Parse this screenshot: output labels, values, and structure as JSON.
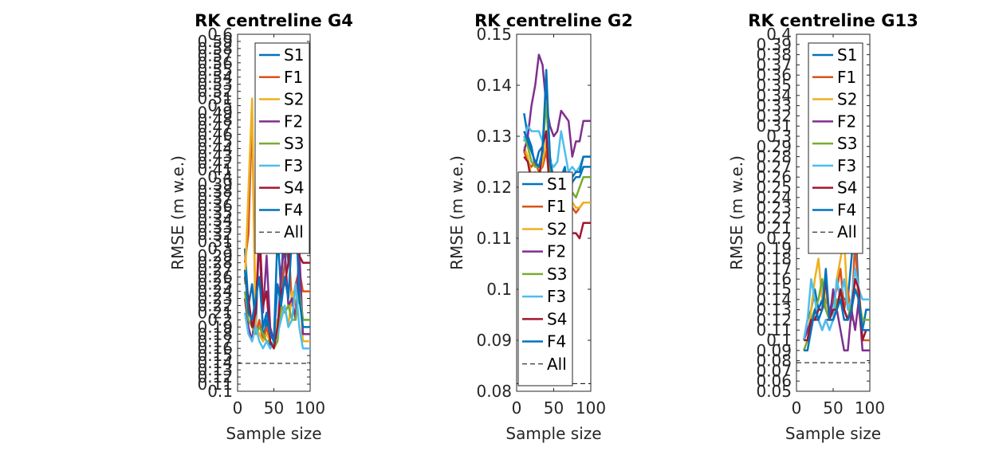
{
  "chart_data": [
    {
      "type": "line",
      "title": "RK centreline G4",
      "xlabel": "Sample size",
      "ylabel": "RMSE (m w.e.)",
      "xlim": [
        0,
        100
      ],
      "ylim": [
        0.1,
        0.6
      ],
      "xticks": [
        0,
        50,
        100
      ],
      "yticks": [
        0.1,
        0.11,
        0.12,
        0.13,
        0.14,
        0.15,
        0.16,
        0.17,
        0.18,
        0.19,
        0.2,
        0.21,
        0.22,
        0.23,
        0.24,
        0.25,
        0.26,
        0.27,
        0.28,
        0.29,
        0.3,
        0.31,
        0.32,
        0.33,
        0.34,
        0.35,
        0.36,
        0.37,
        0.38,
        0.39,
        0.4,
        0.41,
        0.42,
        0.43,
        0.44,
        0.45,
        0.46,
        0.47,
        0.48,
        0.49,
        0.5,
        0.51,
        0.52,
        0.53,
        0.54,
        0.55,
        0.56,
        0.57,
        0.58,
        0.59,
        0.6
      ],
      "legend_position": "top-right",
      "x": [
        10,
        15,
        20,
        25,
        30,
        35,
        40,
        45,
        50,
        55,
        60,
        65,
        70,
        75,
        80,
        85,
        90,
        95,
        100
      ],
      "series": [
        {
          "name": "S1",
          "color": "#0072BD",
          "values": [
            0.3,
            0.22,
            0.25,
            0.19,
            0.33,
            0.17,
            0.2,
            0.16,
            0.17,
            0.32,
            0.24,
            0.37,
            0.28,
            0.34,
            0.42,
            0.25,
            0.2,
            0.2,
            0.2
          ]
        },
        {
          "name": "F1",
          "color": "#D95319",
          "values": [
            0.28,
            0.32,
            0.49,
            0.18,
            0.2,
            0.17,
            0.19,
            0.17,
            0.16,
            0.19,
            0.23,
            0.28,
            0.31,
            0.22,
            0.25,
            0.27,
            0.24,
            0.24,
            0.24
          ]
        },
        {
          "name": "S2",
          "color": "#EDB120",
          "values": [
            0.25,
            0.38,
            0.51,
            0.19,
            0.18,
            0.17,
            0.18,
            0.17,
            0.16,
            0.2,
            0.21,
            0.22,
            0.19,
            0.24,
            0.22,
            0.26,
            0.17,
            0.17,
            0.17
          ]
        },
        {
          "name": "F2",
          "color": "#7E2F8E",
          "values": [
            0.23,
            0.19,
            0.17,
            0.22,
            0.31,
            0.21,
            0.29,
            0.19,
            0.17,
            0.18,
            0.27,
            0.3,
            0.22,
            0.23,
            0.2,
            0.3,
            0.18,
            0.18,
            0.18
          ]
        },
        {
          "name": "S3",
          "color": "#77AC30",
          "values": [
            0.24,
            0.2,
            0.19,
            0.18,
            0.19,
            0.18,
            0.17,
            0.17,
            0.16,
            0.17,
            0.22,
            0.21,
            0.22,
            0.2,
            0.2,
            0.24,
            0.2,
            0.2,
            0.2
          ]
        },
        {
          "name": "F3",
          "color": "#4DBEEE",
          "values": [
            0.21,
            0.18,
            0.17,
            0.19,
            0.17,
            0.16,
            0.17,
            0.16,
            0.17,
            0.18,
            0.2,
            0.22,
            0.19,
            0.2,
            0.25,
            0.19,
            0.16,
            0.16,
            0.16
          ]
        },
        {
          "name": "S4",
          "color": "#A2142F",
          "values": [
            0.26,
            0.23,
            0.19,
            0.21,
            0.33,
            0.22,
            0.24,
            0.17,
            0.16,
            0.19,
            0.24,
            0.25,
            0.28,
            0.33,
            0.38,
            0.29,
            0.28,
            0.28,
            0.28
          ]
        },
        {
          "name": "F4",
          "color": "#0072BD",
          "values": [
            0.27,
            0.21,
            0.2,
            0.23,
            0.26,
            0.19,
            0.21,
            0.18,
            0.17,
            0.25,
            0.22,
            0.26,
            0.23,
            0.32,
            0.36,
            0.23,
            0.19,
            0.19,
            0.19
          ]
        }
      ],
      "all_line": {
        "name": "All",
        "value": 0.139
      }
    },
    {
      "type": "line",
      "title": "RK centreline G2",
      "xlabel": "Sample size",
      "ylabel": "RMSE (m w.e.)",
      "xlim": [
        0,
        100
      ],
      "ylim": [
        0.08,
        0.15
      ],
      "xticks": [
        0,
        50,
        100
      ],
      "yticks": [
        0.08,
        0.09,
        0.1,
        0.11,
        0.12,
        0.13,
        0.14,
        0.15
      ],
      "legend_position": "bottom-left",
      "x": [
        10,
        15,
        20,
        25,
        30,
        35,
        40,
        45,
        50,
        55,
        60,
        65,
        70,
        75,
        80,
        85,
        90,
        95,
        100
      ],
      "series": [
        {
          "name": "S1",
          "color": "#0072BD",
          "values": [
            0.1345,
            0.13,
            0.128,
            0.124,
            0.127,
            0.128,
            0.14,
            0.126,
            0.121,
            0.119,
            0.122,
            0.124,
            0.118,
            0.121,
            0.122,
            0.122,
            0.124,
            0.124,
            0.124
          ]
        },
        {
          "name": "F1",
          "color": "#D95319",
          "values": [
            0.127,
            0.125,
            0.124,
            0.125,
            0.123,
            0.124,
            0.127,
            0.121,
            0.118,
            0.116,
            0.118,
            0.119,
            0.116,
            0.116,
            0.115,
            0.116,
            0.117,
            0.117,
            0.117
          ]
        },
        {
          "name": "S2",
          "color": "#EDB120",
          "values": [
            0.128,
            0.126,
            0.122,
            0.123,
            0.122,
            0.125,
            0.129,
            0.119,
            0.116,
            0.115,
            0.117,
            0.118,
            0.114,
            0.117,
            0.116,
            0.116,
            0.117,
            0.117,
            0.117
          ]
        },
        {
          "name": "F2",
          "color": "#7E2F8E",
          "values": [
            0.127,
            0.13,
            0.136,
            0.14,
            0.146,
            0.144,
            0.136,
            0.132,
            0.13,
            0.131,
            0.135,
            0.134,
            0.133,
            0.126,
            0.129,
            0.129,
            0.133,
            0.133,
            0.133
          ]
        },
        {
          "name": "S3",
          "color": "#77AC30",
          "values": [
            0.13,
            0.128,
            0.125,
            0.124,
            0.124,
            0.127,
            0.137,
            0.123,
            0.119,
            0.118,
            0.12,
            0.12,
            0.117,
            0.119,
            0.118,
            0.12,
            0.122,
            0.122,
            0.122
          ]
        },
        {
          "name": "F3",
          "color": "#4DBEEE",
          "values": [
            0.129,
            0.132,
            0.131,
            0.131,
            0.131,
            0.129,
            0.131,
            0.125,
            0.124,
            0.125,
            0.131,
            0.127,
            0.123,
            0.124,
            0.123,
            0.124,
            0.126,
            0.126,
            0.126
          ]
        },
        {
          "name": "S4",
          "color": "#A2142F",
          "values": [
            0.126,
            0.125,
            0.121,
            0.122,
            0.121,
            0.128,
            0.131,
            0.117,
            0.114,
            0.111,
            0.114,
            0.113,
            0.11,
            0.111,
            0.111,
            0.11,
            0.113,
            0.113,
            0.113
          ]
        },
        {
          "name": "F4",
          "color": "#0072BD",
          "values": [
            0.131,
            0.129,
            0.127,
            0.125,
            0.124,
            0.127,
            0.143,
            0.125,
            0.121,
            0.12,
            0.121,
            0.122,
            0.119,
            0.122,
            0.123,
            0.123,
            0.126,
            0.126,
            0.126
          ]
        }
      ],
      "all_line": {
        "name": "All",
        "value": 0.0815
      }
    },
    {
      "type": "line",
      "title": "RK centreline G13",
      "xlabel": "Sample size",
      "ylabel": "RMSE (m w.e.)",
      "xlim": [
        0,
        100
      ],
      "ylim": [
        0.05,
        0.4
      ],
      "xticks": [
        0,
        50,
        100
      ],
      "yticks": [
        0.05,
        0.06,
        0.07,
        0.08,
        0.09,
        0.1,
        0.11,
        0.12,
        0.13,
        0.14,
        0.15,
        0.16,
        0.17,
        0.18,
        0.19,
        0.2,
        0.21,
        0.22,
        0.23,
        0.24,
        0.25,
        0.26,
        0.27,
        0.28,
        0.29,
        0.3,
        0.31,
        0.32,
        0.33,
        0.34,
        0.35,
        0.36,
        0.37,
        0.38,
        0.39,
        0.4
      ],
      "legend_position": "top-right",
      "x": [
        10,
        15,
        20,
        25,
        30,
        35,
        40,
        45,
        50,
        55,
        60,
        65,
        70,
        75,
        80,
        85,
        90,
        95,
        100
      ],
      "series": [
        {
          "name": "S1",
          "color": "#0072BD",
          "values": [
            0.1,
            0.12,
            0.13,
            0.15,
            0.13,
            0.14,
            0.13,
            0.12,
            0.14,
            0.13,
            0.15,
            0.14,
            0.14,
            0.18,
            0.22,
            0.14,
            0.11,
            0.13,
            0.13
          ]
        },
        {
          "name": "F1",
          "color": "#D95319",
          "values": [
            0.1,
            0.11,
            0.12,
            0.13,
            0.13,
            0.13,
            0.14,
            0.13,
            0.14,
            0.15,
            0.17,
            0.13,
            0.15,
            0.12,
            0.2,
            0.13,
            0.1,
            0.1,
            0.1
          ]
        },
        {
          "name": "S2",
          "color": "#EDB120",
          "values": [
            0.09,
            0.1,
            0.13,
            0.16,
            0.18,
            0.14,
            0.15,
            0.12,
            0.12,
            0.16,
            0.18,
            0.2,
            0.13,
            0.14,
            0.16,
            0.15,
            0.11,
            0.11,
            0.11
          ]
        },
        {
          "name": "F2",
          "color": "#7E2F8E",
          "values": [
            0.1,
            0.11,
            0.12,
            0.12,
            0.12,
            0.11,
            0.12,
            0.12,
            0.15,
            0.13,
            0.11,
            0.09,
            0.09,
            0.13,
            0.11,
            0.14,
            0.09,
            0.09,
            0.09
          ]
        },
        {
          "name": "S3",
          "color": "#77AC30",
          "values": [
            0.09,
            0.1,
            0.12,
            0.13,
            0.14,
            0.16,
            0.13,
            0.12,
            0.12,
            0.14,
            0.14,
            0.13,
            0.12,
            0.14,
            0.15,
            0.14,
            0.12,
            0.12,
            0.12
          ]
        },
        {
          "name": "F3",
          "color": "#4DBEEE",
          "values": [
            0.1,
            0.12,
            0.16,
            0.14,
            0.12,
            0.11,
            0.12,
            0.11,
            0.12,
            0.16,
            0.14,
            0.16,
            0.13,
            0.14,
            0.17,
            0.15,
            0.14,
            0.14,
            0.14
          ]
        },
        {
          "name": "S4",
          "color": "#A2142F",
          "values": [
            0.1,
            0.1,
            0.12,
            0.12,
            0.13,
            0.13,
            0.16,
            0.12,
            0.13,
            0.13,
            0.15,
            0.13,
            0.12,
            0.13,
            0.16,
            0.15,
            0.1,
            0.11,
            0.11
          ]
        },
        {
          "name": "F4",
          "color": "#0072BD",
          "values": [
            0.09,
            0.09,
            0.11,
            0.13,
            0.12,
            0.13,
            0.17,
            0.12,
            0.12,
            0.13,
            0.14,
            0.12,
            0.12,
            0.13,
            0.15,
            0.14,
            0.11,
            0.11,
            0.11
          ]
        }
      ],
      "all_line": {
        "name": "All",
        "value": 0.078
      }
    }
  ]
}
